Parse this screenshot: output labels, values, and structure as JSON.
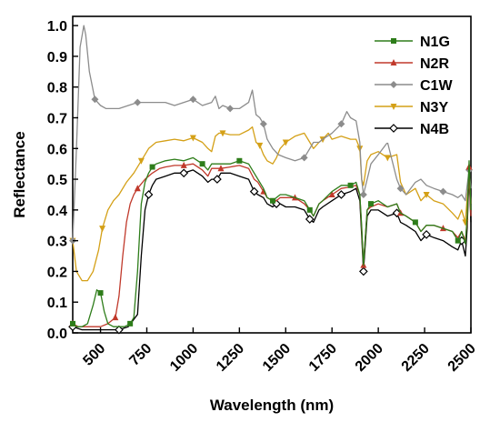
{
  "chart_data": {
    "type": "line",
    "xlabel": "Wavelength (nm)",
    "ylabel": "Reflectance",
    "xlim": [
      350,
      2500
    ],
    "ylim": [
      0.0,
      1.03
    ],
    "xticks": [
      500,
      750,
      1000,
      1250,
      1500,
      1750,
      2000,
      2250,
      2500
    ],
    "yticks": [
      0.0,
      0.1,
      0.2,
      0.3,
      0.4,
      0.5,
      0.6,
      0.7,
      0.8,
      0.9,
      1.0
    ],
    "legend_position": "top-right",
    "grid": false,
    "series": [
      {
        "name": "N1G",
        "color": "#2e7d1a",
        "marker": "square",
        "x": [
          350,
          370,
          400,
          430,
          460,
          480,
          500,
          520,
          540,
          570,
          600,
          630,
          660,
          680,
          700,
          720,
          740,
          760,
          780,
          800,
          850,
          900,
          950,
          1000,
          1050,
          1080,
          1100,
          1130,
          1150,
          1200,
          1250,
          1300,
          1330,
          1350,
          1380,
          1400,
          1430,
          1450,
          1470,
          1500,
          1550,
          1600,
          1630,
          1650,
          1680,
          1700,
          1750,
          1800,
          1850,
          1880,
          1900,
          1910,
          1920,
          1940,
          1960,
          2000,
          2050,
          2100,
          2120,
          2150,
          2200,
          2230,
          2260,
          2300,
          2350,
          2400,
          2430,
          2450,
          2470,
          2480,
          2490,
          2500
        ],
        "y": [
          0.03,
          0.02,
          0.02,
          0.03,
          0.09,
          0.14,
          0.13,
          0.07,
          0.03,
          0.02,
          0.02,
          0.02,
          0.03,
          0.05,
          0.2,
          0.42,
          0.49,
          0.52,
          0.54,
          0.55,
          0.56,
          0.565,
          0.56,
          0.57,
          0.55,
          0.53,
          0.55,
          0.55,
          0.55,
          0.55,
          0.56,
          0.55,
          0.52,
          0.5,
          0.47,
          0.44,
          0.43,
          0.44,
          0.45,
          0.45,
          0.44,
          0.43,
          0.4,
          0.38,
          0.42,
          0.43,
          0.46,
          0.48,
          0.48,
          0.49,
          0.45,
          0.35,
          0.22,
          0.4,
          0.42,
          0.43,
          0.41,
          0.42,
          0.39,
          0.38,
          0.36,
          0.33,
          0.35,
          0.35,
          0.34,
          0.33,
          0.3,
          0.33,
          0.29,
          0.38,
          0.56,
          0.4
        ]
      },
      {
        "name": "N2R",
        "color": "#c0392b",
        "marker": "triangle-up",
        "x": [
          350,
          380,
          420,
          460,
          500,
          540,
          580,
          600,
          620,
          640,
          660,
          680,
          700,
          740,
          780,
          820,
          850,
          900,
          950,
          1000,
          1050,
          1080,
          1100,
          1130,
          1150,
          1200,
          1250,
          1300,
          1330,
          1350,
          1380,
          1400,
          1430,
          1450,
          1470,
          1500,
          1550,
          1600,
          1630,
          1650,
          1680,
          1700,
          1750,
          1800,
          1850,
          1880,
          1900,
          1910,
          1920,
          1940,
          1960,
          2000,
          2050,
          2100,
          2120,
          2150,
          2200,
          2230,
          2260,
          2300,
          2350,
          2400,
          2430,
          2450,
          2470,
          2480,
          2490,
          2500
        ],
        "y": [
          0.03,
          0.02,
          0.02,
          0.02,
          0.02,
          0.03,
          0.05,
          0.12,
          0.25,
          0.36,
          0.42,
          0.45,
          0.47,
          0.5,
          0.52,
          0.535,
          0.54,
          0.545,
          0.545,
          0.55,
          0.53,
          0.51,
          0.535,
          0.535,
          0.535,
          0.54,
          0.545,
          0.535,
          0.5,
          0.49,
          0.46,
          0.44,
          0.43,
          0.43,
          0.44,
          0.44,
          0.44,
          0.42,
          0.4,
          0.38,
          0.42,
          0.43,
          0.45,
          0.47,
          0.475,
          0.48,
          0.45,
          0.34,
          0.22,
          0.4,
          0.41,
          0.42,
          0.41,
          0.42,
          0.39,
          0.38,
          0.36,
          0.33,
          0.35,
          0.35,
          0.34,
          0.33,
          0.31,
          0.33,
          0.3,
          0.36,
          0.54,
          0.38
        ]
      },
      {
        "name": "C1W",
        "color": "#8c8c8c",
        "marker": "diamond",
        "x": [
          350,
          370,
          390,
          410,
          420,
          440,
          470,
          500,
          530,
          560,
          600,
          650,
          700,
          750,
          800,
          850,
          900,
          950,
          1000,
          1050,
          1100,
          1120,
          1140,
          1160,
          1200,
          1250,
          1300,
          1320,
          1340,
          1360,
          1380,
          1400,
          1430,
          1460,
          1500,
          1550,
          1600,
          1630,
          1650,
          1680,
          1700,
          1750,
          1800,
          1830,
          1850,
          1880,
          1900,
          1910,
          1920,
          1940,
          1960,
          2000,
          2050,
          2100,
          2120,
          2150,
          2200,
          2230,
          2260,
          2300,
          2350,
          2400,
          2430,
          2450,
          2470,
          2480,
          2490,
          2500
        ],
        "y": [
          0.3,
          0.6,
          0.93,
          1.0,
          0.97,
          0.85,
          0.76,
          0.74,
          0.73,
          0.73,
          0.73,
          0.74,
          0.75,
          0.75,
          0.75,
          0.75,
          0.74,
          0.75,
          0.76,
          0.74,
          0.75,
          0.77,
          0.73,
          0.74,
          0.73,
          0.73,
          0.75,
          0.79,
          0.71,
          0.7,
          0.68,
          0.63,
          0.6,
          0.58,
          0.57,
          0.56,
          0.57,
          0.6,
          0.62,
          0.62,
          0.63,
          0.65,
          0.68,
          0.72,
          0.7,
          0.69,
          0.62,
          0.5,
          0.45,
          0.5,
          0.55,
          0.58,
          0.62,
          0.5,
          0.47,
          0.45,
          0.49,
          0.5,
          0.48,
          0.47,
          0.46,
          0.45,
          0.44,
          0.45,
          0.43,
          0.48,
          0.53,
          0.47
        ]
      },
      {
        "name": "N3Y",
        "color": "#d4a017",
        "marker": "triangle-down",
        "x": [
          350,
          370,
          400,
          430,
          460,
          490,
          510,
          540,
          570,
          600,
          640,
          680,
          720,
          760,
          800,
          850,
          900,
          950,
          1000,
          1050,
          1080,
          1100,
          1120,
          1140,
          1160,
          1200,
          1250,
          1300,
          1320,
          1340,
          1360,
          1380,
          1400,
          1430,
          1450,
          1470,
          1500,
          1550,
          1600,
          1630,
          1650,
          1680,
          1700,
          1730,
          1750,
          1800,
          1850,
          1880,
          1900,
          1910,
          1920,
          1940,
          1960,
          2000,
          2050,
          2100,
          2120,
          2150,
          2200,
          2230,
          2260,
          2300,
          2350,
          2400,
          2430,
          2450,
          2470,
          2480,
          2490,
          2500
        ],
        "y": [
          0.3,
          0.2,
          0.17,
          0.17,
          0.2,
          0.27,
          0.34,
          0.4,
          0.43,
          0.45,
          0.49,
          0.52,
          0.56,
          0.6,
          0.62,
          0.625,
          0.63,
          0.625,
          0.635,
          0.62,
          0.6,
          0.59,
          0.64,
          0.65,
          0.65,
          0.645,
          0.645,
          0.66,
          0.67,
          0.62,
          0.61,
          0.58,
          0.56,
          0.55,
          0.57,
          0.6,
          0.62,
          0.64,
          0.65,
          0.62,
          0.6,
          0.62,
          0.63,
          0.65,
          0.63,
          0.64,
          0.63,
          0.63,
          0.6,
          0.5,
          0.48,
          0.56,
          0.58,
          0.59,
          0.57,
          0.58,
          0.49,
          0.45,
          0.47,
          0.43,
          0.45,
          0.43,
          0.42,
          0.39,
          0.37,
          0.4,
          0.36,
          0.44,
          0.5,
          0.42
        ]
      },
      {
        "name": "N4B",
        "color": "#000000",
        "marker": "diamond-open",
        "x": [
          350,
          400,
          450,
          500,
          550,
          600,
          650,
          700,
          720,
          740,
          760,
          780,
          800,
          850,
          900,
          950,
          1000,
          1050,
          1080,
          1100,
          1130,
          1150,
          1200,
          1250,
          1300,
          1330,
          1350,
          1380,
          1400,
          1430,
          1450,
          1470,
          1500,
          1550,
          1600,
          1630,
          1650,
          1680,
          1700,
          1750,
          1800,
          1850,
          1880,
          1900,
          1910,
          1920,
          1940,
          1960,
          2000,
          2050,
          2100,
          2120,
          2150,
          2200,
          2230,
          2260,
          2300,
          2350,
          2400,
          2430,
          2450,
          2470,
          2480,
          2490,
          2500
        ],
        "y": [
          0.02,
          0.01,
          0.01,
          0.01,
          0.01,
          0.01,
          0.02,
          0.06,
          0.25,
          0.4,
          0.45,
          0.48,
          0.5,
          0.51,
          0.52,
          0.52,
          0.53,
          0.51,
          0.49,
          0.5,
          0.5,
          0.52,
          0.52,
          0.51,
          0.5,
          0.46,
          0.45,
          0.44,
          0.42,
          0.41,
          0.42,
          0.42,
          0.41,
          0.41,
          0.4,
          0.37,
          0.36,
          0.4,
          0.41,
          0.43,
          0.45,
          0.46,
          0.47,
          0.43,
          0.32,
          0.2,
          0.38,
          0.4,
          0.4,
          0.38,
          0.39,
          0.36,
          0.35,
          0.33,
          0.3,
          0.32,
          0.31,
          0.3,
          0.28,
          0.27,
          0.3,
          0.25,
          0.34,
          0.52,
          0.36
        ]
      }
    ]
  }
}
